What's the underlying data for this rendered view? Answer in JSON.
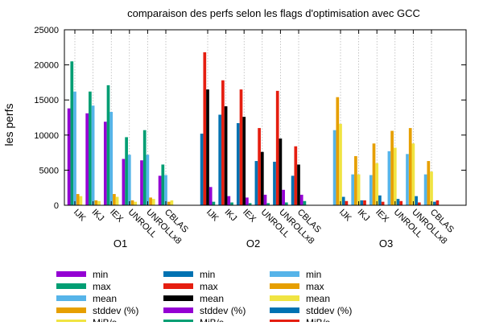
{
  "chart_data": {
    "type": "bar",
    "title": "comparaison des perfs selon les flags d'optimisation avec GCC",
    "ylabel": "les perfs",
    "xlabel": "",
    "ylim": [
      0,
      25000
    ],
    "yticks": [
      0,
      5000,
      10000,
      15000,
      20000,
      25000
    ],
    "grid": true,
    "legend_position": "bottom",
    "groups": [
      {
        "name": "O1",
        "categories": [
          "IJK",
          "IKJ",
          "IEX",
          "UNROLL",
          "UNROLLx8",
          "CBLAS"
        ],
        "series": [
          {
            "name": "min",
            "color": "#9400d3",
            "values": [
              13800,
              13100,
              11900,
              6600,
              6400,
              4200
            ]
          },
          {
            "name": "max",
            "color": "#009e73",
            "values": [
              20500,
              16200,
              17100,
              9700,
              10700,
              5800
            ]
          },
          {
            "name": "mean",
            "color": "#56b4e9",
            "values": [
              16200,
              14200,
              13300,
              7200,
              7200,
              4300
            ]
          },
          {
            "name": "stddev (%)",
            "color": "#e69f00",
            "values": [
              1600,
              700,
              1600,
              700,
              1100,
              500
            ]
          },
          {
            "name": "MiB/s",
            "color": "#f0e442",
            "values": [
              1300,
              600,
              1200,
              500,
              900,
              700
            ]
          }
        ]
      },
      {
        "name": "O2",
        "categories": [
          "IJK",
          "IKJ",
          "IEX",
          "UNROLL",
          "UNROLLx8",
          "CBLAS"
        ],
        "series": [
          {
            "name": "min",
            "color": "#0072b2",
            "values": [
              10200,
              12900,
              11700,
              6300,
              6200,
              4200
            ]
          },
          {
            "name": "max",
            "color": "#e51e10",
            "values": [
              21800,
              17800,
              16500,
              11000,
              16300,
              8400
            ]
          },
          {
            "name": "mean",
            "color": "#000000",
            "values": [
              16500,
              14100,
              12600,
              7600,
              9500,
              5800
            ]
          },
          {
            "name": "stddev (%)",
            "color": "#9400d3",
            "values": [
              2600,
              1300,
              1100,
              1500,
              2200,
              1500
            ]
          },
          {
            "name": "MiB/s",
            "color": "#009e73",
            "values": [
              500,
              400,
              300,
              300,
              400,
              600
            ]
          }
        ]
      },
      {
        "name": "O3",
        "categories": [
          "IJK",
          "IKJ",
          "IEX",
          "UNROLL",
          "UNROLLx8",
          "CBLAS"
        ],
        "series": [
          {
            "name": "min",
            "color": "#56b4e9",
            "values": [
              10700,
              4400,
              4300,
              7700,
              7300,
              4400
            ]
          },
          {
            "name": "max",
            "color": "#e69f00",
            "values": [
              15400,
              7000,
              8800,
              10600,
              11000,
              6300
            ]
          },
          {
            "name": "mean",
            "color": "#f0e442",
            "values": [
              11600,
              4400,
              6000,
              8200,
              8800,
              4800
            ]
          },
          {
            "name": "stddev (%)",
            "color": "#0072b2",
            "values": [
              1200,
              700,
              1400,
              900,
              1300,
              500
            ]
          },
          {
            "name": "MiB/s",
            "color": "#e51e10",
            "values": [
              600,
              700,
              500,
              600,
              400,
              700
            ]
          }
        ]
      }
    ]
  }
}
